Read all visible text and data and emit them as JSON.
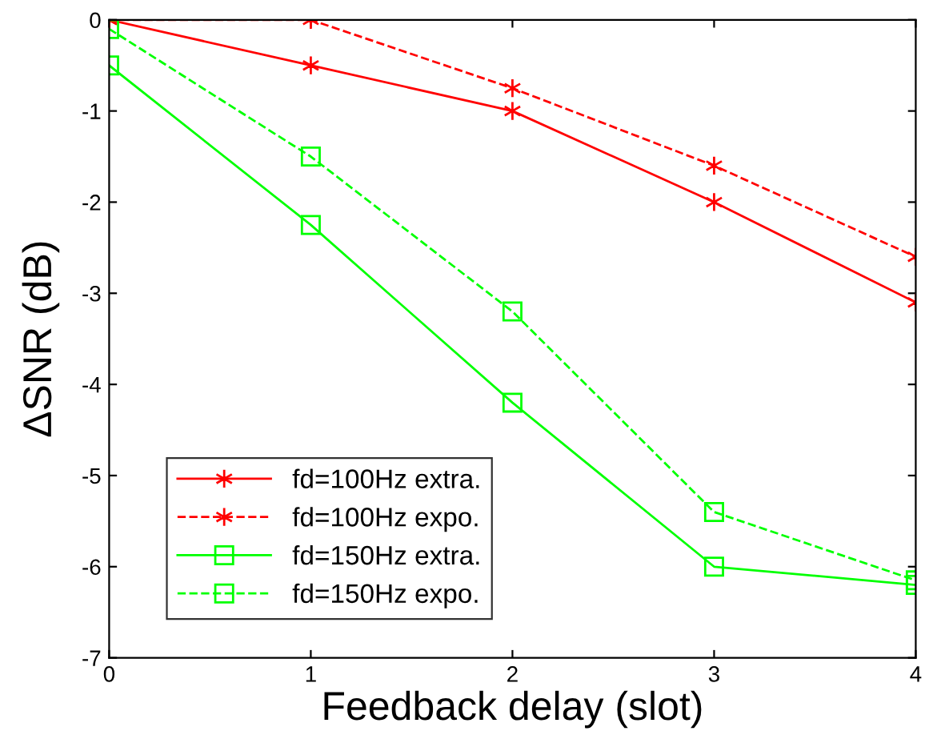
{
  "chart_data": {
    "type": "line",
    "xlabel": "Feedback delay (slot)",
    "ylabel": "ΔSNR (dB)",
    "x": [
      0,
      1,
      2,
      3,
      4
    ],
    "series": [
      {
        "name": "fd=100Hz extra.",
        "color": "#ff0000",
        "marker": "cross",
        "line_style": "solid",
        "values": [
          0,
          -0.5,
          -1,
          -2,
          -3.1
        ]
      },
      {
        "name": "fd=100Hz expo.",
        "color": "#ff0000",
        "marker": "cross",
        "line_style": "dashed",
        "values": [
          0,
          0,
          -0.75,
          -1.6,
          -2.6
        ]
      },
      {
        "name": "fd=150Hz extra.",
        "color": "#00ff00",
        "marker": "square",
        "line_style": "solid",
        "values": [
          -0.5,
          -2.25,
          -4.2,
          -6,
          -6.2
        ]
      },
      {
        "name": "fd=150Hz expo.",
        "color": "#00ff00",
        "marker": "square",
        "line_style": "dashed",
        "values": [
          -0.1,
          -1.5,
          -3.2,
          -5.4,
          -6.15
        ]
      }
    ],
    "xlim": [
      0,
      4
    ],
    "xticks": [
      0,
      1,
      2,
      3,
      4
    ],
    "ylim": [
      -7,
      0
    ],
    "yticks": [
      -7,
      -6,
      -5,
      -4,
      -3,
      -2,
      -1,
      0
    ],
    "grid": false,
    "legend": "bottom left"
  }
}
